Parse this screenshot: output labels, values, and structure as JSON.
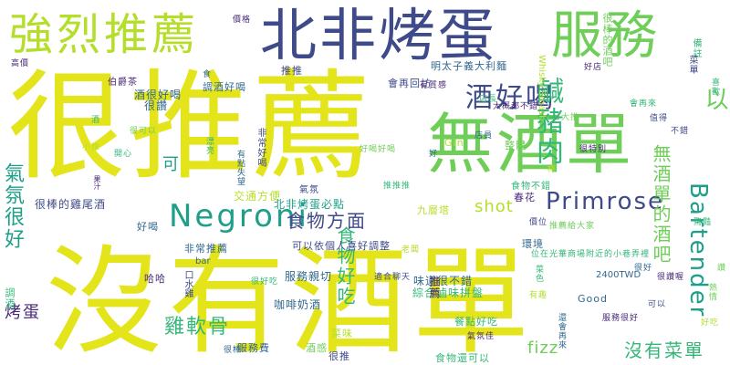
{
  "palette": {
    "yellow": "#e3e41a",
    "lime": "#b5de2b",
    "green": "#6ece58",
    "teal": "#35b779",
    "cyan": "#1f9e89",
    "blue": "#31688e",
    "navy": "#3e4a89",
    "purple": "#482878",
    "dark": "#440154"
  },
  "words": [
    {
      "text": "沒有酒單",
      "color": "yellow"
    },
    {
      "text": "很推薦",
      "color": "yellow"
    },
    {
      "text": "無酒單",
      "color": "green"
    },
    {
      "text": "北非烤蛋",
      "color": "navy"
    },
    {
      "text": "強烈推薦",
      "color": "lime"
    },
    {
      "text": "服務",
      "color": "green"
    },
    {
      "text": "酒好喝",
      "color": "navy"
    },
    {
      "text": "鹹豬肉",
      "color": "teal"
    },
    {
      "text": "以",
      "color": "green"
    },
    {
      "text": "Negroni",
      "color": "cyan"
    },
    {
      "text": "Primrose",
      "color": "navy"
    },
    {
      "text": "Bartender",
      "color": "cyan"
    },
    {
      "text": "無酒單的酒吧",
      "color": "green"
    },
    {
      "text": "氣氛很好",
      "color": "cyan"
    },
    {
      "text": "食物方面",
      "color": "navy"
    },
    {
      "text": "食物好吃",
      "color": "teal"
    },
    {
      "text": "雞軟骨",
      "color": "teal"
    },
    {
      "text": "沒有菜單",
      "color": "teal"
    },
    {
      "text": "shot",
      "color": "lime"
    },
    {
      "text": "fizz",
      "color": "green"
    },
    {
      "text": "烤蛋",
      "color": "purple"
    },
    {
      "text": "可",
      "color": "cyan"
    },
    {
      "text": "酒很好喝",
      "color": "blue"
    },
    {
      "text": "很讚",
      "color": "blue"
    },
    {
      "text": "伯爵茶",
      "color": "purple"
    },
    {
      "text": "很棒的雞尾酒",
      "color": "navy"
    },
    {
      "text": "交通方便",
      "color": "lime"
    },
    {
      "text": "北非烤蛋必點",
      "color": "cyan"
    },
    {
      "text": "可以依個人喜好調整",
      "color": "navy"
    },
    {
      "text": "服務親切",
      "color": "blue"
    },
    {
      "text": "咖啡奶酒",
      "color": "blue"
    },
    {
      "text": "味道很不錯",
      "color": "blue"
    },
    {
      "text": "綜合滷味拼盤",
      "color": "teal"
    },
    {
      "text": "餐點好吃",
      "color": "teal"
    },
    {
      "text": "推薦",
      "color": "purple"
    },
    {
      "text": "Good",
      "color": "blue"
    },
    {
      "text": "2400TWD",
      "color": "blue"
    },
    {
      "text": "春花",
      "color": "purple"
    },
    {
      "text": "九層塔",
      "color": "lime"
    },
    {
      "text": "環境",
      "color": "blue"
    },
    {
      "text": "整體",
      "color": "green"
    },
    {
      "text": "Gin",
      "color": "lime"
    },
    {
      "text": "明太子義大利麵",
      "color": "blue"
    },
    {
      "text": "Whisky Smash",
      "color": "lime"
    },
    {
      "text": "調酒好喝",
      "color": "blue"
    },
    {
      "text": "會再回訪",
      "color": "navy"
    },
    {
      "text": "推推",
      "color": "navy"
    },
    {
      "text": "好喝",
      "color": "blue"
    },
    {
      "text": "非常推薦",
      "color": "blue"
    },
    {
      "text": "哈哈",
      "color": "purple"
    },
    {
      "text": "bar",
      "color": "blue"
    },
    {
      "text": "口水雞",
      "color": "navy"
    },
    {
      "text": "調酒",
      "color": "teal"
    },
    {
      "text": "服務費",
      "color": "blue"
    },
    {
      "text": "食物還可以",
      "color": "teal"
    },
    {
      "text": "菜味",
      "color": "lime"
    },
    {
      "text": "酒感",
      "color": "green"
    },
    {
      "text": "很推",
      "color": "navy"
    },
    {
      "text": "氣氛",
      "color": "navy"
    },
    {
      "text": "食物不錯",
      "color": "teal"
    },
    {
      "text": "很棒的酒吧",
      "color": "green"
    },
    {
      "text": "備註",
      "color": "teal"
    },
    {
      "text": "高價",
      "color": "purple"
    },
    {
      "text": "菜單",
      "color": "navy"
    },
    {
      "text": "喜歡",
      "color": "teal"
    },
    {
      "text": "值得",
      "color": "navy"
    },
    {
      "text": "果汁",
      "color": "purple"
    },
    {
      "text": "有點失望",
      "color": "blue"
    },
    {
      "text": "非常好喝",
      "color": "navy"
    },
    {
      "text": "推薦給大家",
      "color": "green"
    },
    {
      "text": "大推",
      "color": "green"
    },
    {
      "text": "服務很好",
      "color": "purple"
    },
    {
      "text": "有趣",
      "color": "lime"
    },
    {
      "text": "位在光華商場附近的小巷弄裡",
      "color": "teal"
    },
    {
      "text": "大概都不錯",
      "color": "purple"
    },
    {
      "text": "還會再來",
      "color": "blue"
    },
    {
      "text": "菜色",
      "color": "teal"
    },
    {
      "text": "食",
      "color": "blue"
    },
    {
      "text": "價格",
      "color": "purple"
    },
    {
      "text": "很好",
      "color": "blue"
    },
    {
      "text": "推推推",
      "color": "teal"
    },
    {
      "text": "好吃",
      "color": "lime"
    },
    {
      "text": "讚",
      "color": "green"
    },
    {
      "text": "酒",
      "color": "teal"
    },
    {
      "text": "不錯",
      "color": "navy"
    },
    {
      "text": "有質感",
      "color": "purple"
    },
    {
      "text": "可以",
      "color": "navy"
    },
    {
      "text": "開心",
      "color": "teal"
    },
    {
      "text": "好",
      "color": "blue"
    },
    {
      "text": "棒",
      "color": "lime"
    },
    {
      "text": "很讚喔",
      "color": "purple"
    },
    {
      "text": "好喝好喝",
      "color": "green"
    },
    {
      "text": "漂亮",
      "color": "teal"
    },
    {
      "text": "很棒",
      "color": "blue"
    },
    {
      "text": "氣氛佳",
      "color": "purple"
    },
    {
      "text": "熱情",
      "color": "green"
    },
    {
      "text": "適合聊天",
      "color": "navy"
    },
    {
      "text": "很好吃",
      "color": "teal"
    },
    {
      "text": "很可以",
      "color": "green"
    },
    {
      "text": "小推",
      "color": "lime"
    },
    {
      "text": "驚豔",
      "color": "teal"
    },
    {
      "text": "很特別",
      "color": "purple"
    },
    {
      "text": "會再來",
      "color": "teal"
    },
    {
      "text": "價位",
      "color": "navy"
    },
    {
      "text": "店員",
      "color": "blue"
    },
    {
      "text": "店長",
      "color": "teal"
    },
    {
      "text": "老闆",
      "color": "lime"
    },
    {
      "text": "好店",
      "color": "purple"
    }
  ]
}
